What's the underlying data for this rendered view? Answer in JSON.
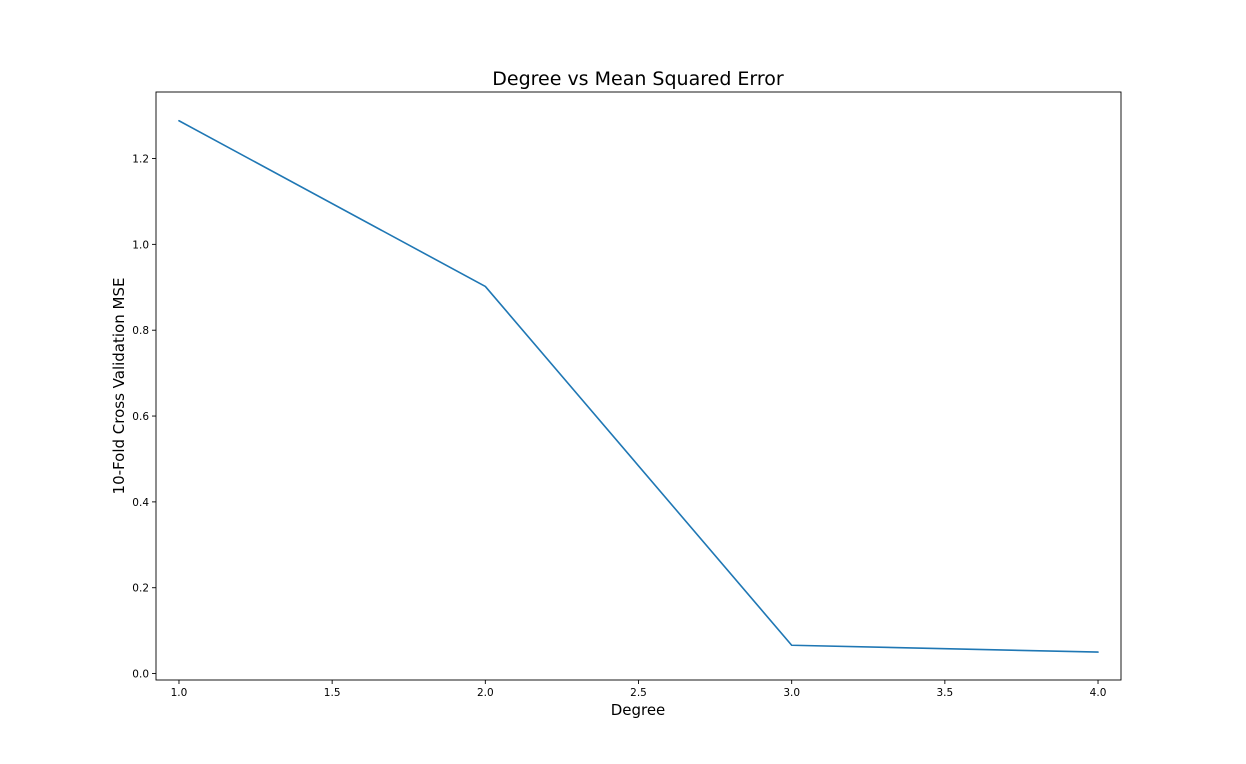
{
  "chart_data": {
    "type": "line",
    "title": "Degree vs Mean Squared Error",
    "xlabel": "Degree",
    "ylabel": "10-Fold Cross Validation MSE",
    "xlim": [
      0.925,
      4.075
    ],
    "ylim": [
      -0.015,
      1.355
    ],
    "xticks": [
      1.0,
      1.5,
      2.0,
      2.5,
      3.0,
      3.5,
      4.0
    ],
    "xtick_labels": [
      "1.0",
      "1.5",
      "2.0",
      "2.5",
      "3.0",
      "3.5",
      "4.0"
    ],
    "yticks": [
      0.0,
      0.2,
      0.4,
      0.6,
      0.8,
      1.0,
      1.2
    ],
    "ytick_labels": [
      "0.0",
      "0.2",
      "0.4",
      "0.6",
      "0.8",
      "1.0",
      "1.2"
    ],
    "grid": false,
    "series": [
      {
        "color": "#1f77b4",
        "x": [
          1,
          2,
          3,
          4
        ],
        "y": [
          1.288,
          0.902,
          0.066,
          0.05
        ]
      }
    ]
  }
}
